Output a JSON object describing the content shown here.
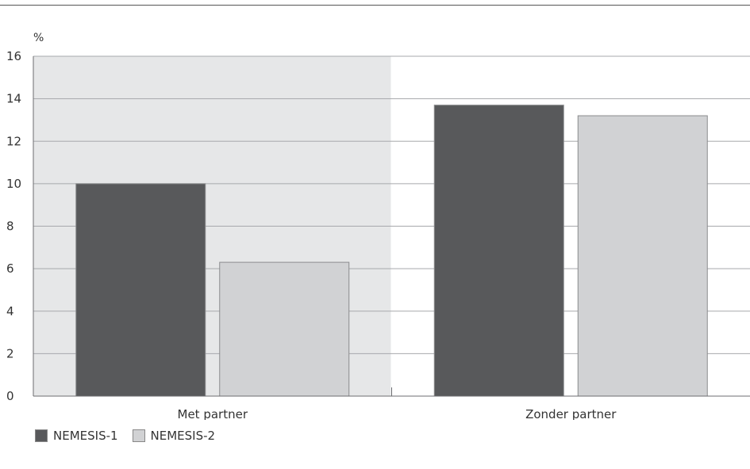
{
  "chart_data": {
    "type": "bar",
    "unit_label": "%",
    "categories": [
      "Met partner",
      "Zonder partner"
    ],
    "highlighted_category": "Met partner",
    "series": [
      {
        "name": "NEMESIS-1",
        "values": [
          10.0,
          13.7
        ],
        "color": "#58595b"
      },
      {
        "name": "NEMESIS-2",
        "values": [
          6.3,
          13.2
        ],
        "color": "#d1d2d4"
      }
    ],
    "ylim": [
      0,
      16
    ],
    "yticks": [
      0,
      2,
      4,
      6,
      8,
      10,
      12,
      14,
      16
    ],
    "grid": true,
    "legend_position": "bottom-left",
    "highlight_color": "#e6e7e8"
  }
}
